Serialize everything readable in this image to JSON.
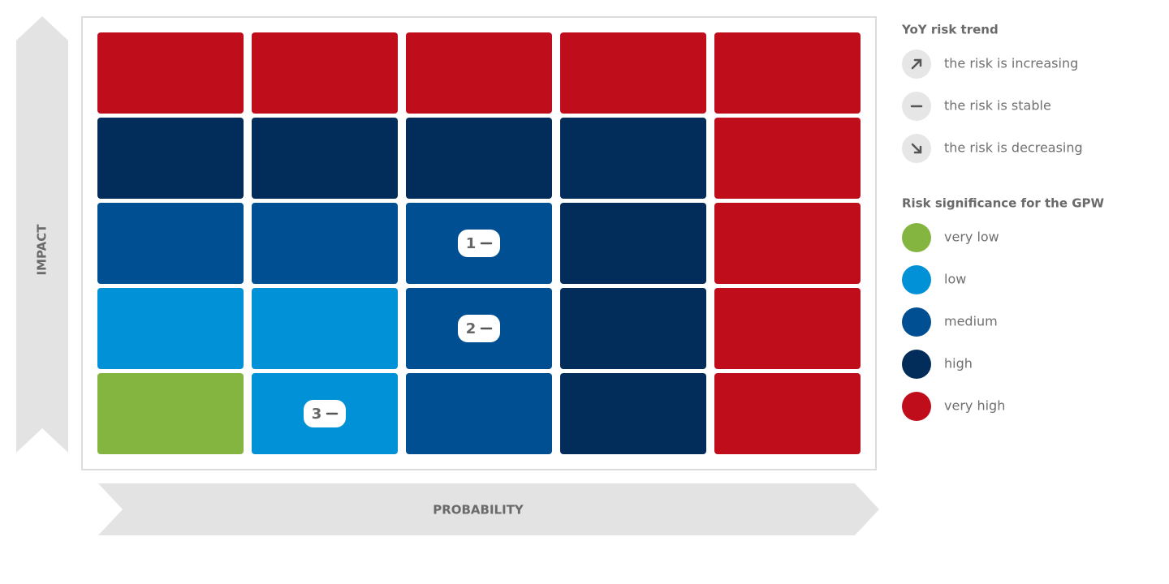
{
  "axes": {
    "y_label": "IMPACT",
    "x_label": "PROBABILITY"
  },
  "cells": [
    [
      "#c00d1c",
      "#c00d1c",
      "#c00d1c",
      "#c00d1c",
      "#c00d1c"
    ],
    [
      "#022d5a",
      "#022d5a",
      "#022d5a",
      "#022d5a",
      "#c00d1c"
    ],
    [
      "#004f93",
      "#004f93",
      "#004f93",
      "#022d5a",
      "#c00d1c"
    ],
    [
      "#0091d7",
      "#0091d7",
      "#004f93",
      "#022d5a",
      "#c00d1c"
    ],
    [
      "#84b541",
      "#0091d7",
      "#004f93",
      "#022d5a",
      "#c00d1c"
    ]
  ],
  "markers": [
    {
      "label": "1",
      "row": 2,
      "col": 2,
      "trend": "stable"
    },
    {
      "label": "2",
      "row": 3,
      "col": 2,
      "trend": "stable"
    },
    {
      "label": "3",
      "row": 4,
      "col": 1,
      "trend": "stable"
    }
  ],
  "trend_legend": {
    "title": "YoY risk trend",
    "items": [
      {
        "trend": "increasing",
        "label": "the risk is increasing"
      },
      {
        "trend": "stable",
        "label": "the risk is stable"
      },
      {
        "trend": "decreasing",
        "label": "the risk is decreasing"
      }
    ]
  },
  "significance_legend": {
    "title": "Risk significance for the GPW",
    "items": [
      {
        "label": "very low",
        "color": "#84b541"
      },
      {
        "label": "low",
        "color": "#0091d7"
      },
      {
        "label": "medium",
        "color": "#004f93"
      },
      {
        "label": "high",
        "color": "#022d5a"
      },
      {
        "label": "very high",
        "color": "#c00d1c"
      }
    ]
  }
}
